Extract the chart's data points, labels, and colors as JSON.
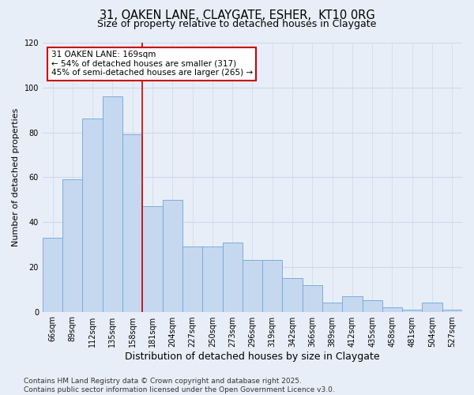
{
  "title": "31, OAKEN LANE, CLAYGATE, ESHER,  KT10 0RG",
  "subtitle": "Size of property relative to detached houses in Claygate",
  "xlabel": "Distribution of detached houses by size in Claygate",
  "ylabel": "Number of detached properties",
  "bar_labels": [
    "66sqm",
    "89sqm",
    "112sqm",
    "135sqm",
    "158sqm",
    "181sqm",
    "204sqm",
    "227sqm",
    "250sqm",
    "273sqm",
    "296sqm",
    "319sqm",
    "342sqm",
    "366sqm",
    "389sqm",
    "412sqm",
    "435sqm",
    "458sqm",
    "481sqm",
    "504sqm",
    "527sqm"
  ],
  "bar_values": [
    33,
    59,
    86,
    96,
    79,
    47,
    50,
    29,
    29,
    31,
    23,
    23,
    15,
    12,
    4,
    7,
    5,
    2,
    1,
    4,
    1
  ],
  "bar_color": "#c5d8f0",
  "bar_edge_color": "#7aadda",
  "annotation_box_text": "31 OAKEN LANE: 169sqm\n← 54% of detached houses are smaller (317)\n45% of semi-detached houses are larger (265) →",
  "annotation_box_edge_color": "#cc0000",
  "annotation_box_face_color": "white",
  "vline_color": "#cc0000",
  "vline_x_index": 4,
  "ylim": [
    0,
    120
  ],
  "yticks": [
    0,
    20,
    40,
    60,
    80,
    100,
    120
  ],
  "grid_color": "#d0d8e8",
  "background_color": "#e8eef8",
  "footer_text": "Contains HM Land Registry data © Crown copyright and database right 2025.\nContains public sector information licensed under the Open Government Licence v3.0.",
  "title_fontsize": 10.5,
  "subtitle_fontsize": 9,
  "ylabel_fontsize": 8,
  "xlabel_fontsize": 9,
  "tick_fontsize": 7,
  "annotation_fontsize": 7.5,
  "footer_fontsize": 6.5
}
